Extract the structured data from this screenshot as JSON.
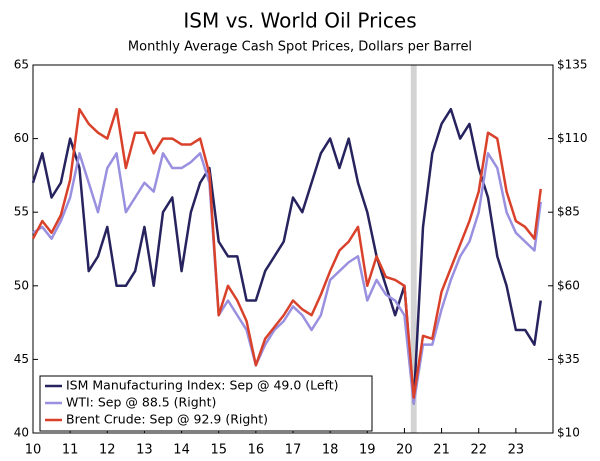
{
  "chart_data": {
    "type": "line",
    "title": "ISM vs. World Oil Prices",
    "subtitle": "Monthly Average Cash Spot Prices, Dollars per Barrel",
    "x": [
      2010,
      2010.25,
      2010.5,
      2010.75,
      2011,
      2011.25,
      2011.5,
      2011.75,
      2012,
      2012.25,
      2012.5,
      2012.75,
      2013,
      2013.25,
      2013.5,
      2013.75,
      2014,
      2014.25,
      2014.5,
      2014.75,
      2015,
      2015.25,
      2015.5,
      2015.75,
      2016,
      2016.25,
      2016.5,
      2016.75,
      2017,
      2017.25,
      2017.5,
      2017.75,
      2018,
      2018.25,
      2018.5,
      2018.75,
      2019,
      2019.25,
      2019.5,
      2019.75,
      2020,
      2020.25,
      2020.5,
      2020.75,
      2021,
      2021.25,
      2021.5,
      2021.75,
      2022,
      2022.25,
      2022.5,
      2022.75,
      2023,
      2023.25,
      2023.5,
      2023.67
    ],
    "series": [
      {
        "name": "ISM Manufacturing Index: Sep @ 49.0 (Left)",
        "color": "#26235e",
        "axis": "y",
        "values": [
          57,
          59,
          56,
          57,
          60,
          58,
          51,
          52,
          54,
          50,
          50,
          51,
          54,
          50,
          55,
          56,
          51,
          55,
          57,
          58,
          53,
          52,
          52,
          49,
          49,
          51,
          52,
          53,
          56,
          55,
          57,
          59,
          60,
          58,
          60,
          57,
          55,
          52,
          50,
          48,
          50,
          42,
          54,
          59,
          61,
          62,
          60,
          61,
          58,
          56,
          52,
          50,
          47,
          47,
          46,
          49.0
        ]
      },
      {
        "name": "WTI: Sep @ 88.5 (Right)",
        "color": "#9a90e0",
        "axis": "y2",
        "values": [
          78,
          80,
          76,
          82,
          90,
          105,
          95,
          85,
          100,
          105,
          85,
          90,
          95,
          92,
          105,
          100,
          100,
          102,
          105,
          95,
          50,
          55,
          50,
          45,
          33,
          40,
          45,
          48,
          53,
          50,
          45,
          50,
          62,
          65,
          68,
          70,
          55,
          62,
          57,
          55,
          50,
          20,
          40,
          40,
          52,
          62,
          70,
          75,
          85,
          105,
          100,
          85,
          78,
          75,
          72,
          88.5
        ]
      },
      {
        "name": "Brent Crude: Sep @ 92.9 (Right)",
        "color": "#d9412b",
        "axis": "y2",
        "values": [
          76,
          82,
          78,
          84,
          96,
          120,
          115,
          112,
          110,
          120,
          100,
          112,
          112,
          105,
          110,
          110,
          108,
          108,
          110,
          98,
          50,
          60,
          55,
          48,
          33,
          42,
          46,
          50,
          55,
          52,
          50,
          57,
          65,
          72,
          75,
          80,
          60,
          70,
          63,
          62,
          60,
          22,
          43,
          42,
          58,
          66,
          74,
          82,
          92,
          112,
          110,
          92,
          82,
          80,
          76,
          92.9
        ]
      }
    ],
    "recession": [
      2020.17,
      2020.33
    ],
    "xlim": [
      2010,
      2024
    ],
    "xticks": [
      {
        "value": 2010,
        "label": "10"
      },
      {
        "value": 2011,
        "label": "11"
      },
      {
        "value": 2012,
        "label": "12"
      },
      {
        "value": 2013,
        "label": "13"
      },
      {
        "value": 2014,
        "label": "14"
      },
      {
        "value": 2015,
        "label": "15"
      },
      {
        "value": 2016,
        "label": "16"
      },
      {
        "value": 2017,
        "label": "17"
      },
      {
        "value": 2018,
        "label": "18"
      },
      {
        "value": 2019,
        "label": "19"
      },
      {
        "value": 2020,
        "label": "20"
      },
      {
        "value": 2021,
        "label": "21"
      },
      {
        "value": 2022,
        "label": "22"
      },
      {
        "value": 2023,
        "label": "23"
      }
    ],
    "ylim": [
      40,
      65
    ],
    "yticks": [
      40,
      45,
      50,
      55,
      60,
      65
    ],
    "y2lim": [
      10,
      135
    ],
    "y2ticks": [
      {
        "value": 10,
        "label": "$10"
      },
      {
        "value": 35,
        "label": "$35"
      },
      {
        "value": 60,
        "label": "$60"
      },
      {
        "value": 85,
        "label": "$85"
      },
      {
        "value": 110,
        "label": "$110"
      },
      {
        "value": 135,
        "label": "$135"
      }
    ],
    "legend": "lower left"
  }
}
